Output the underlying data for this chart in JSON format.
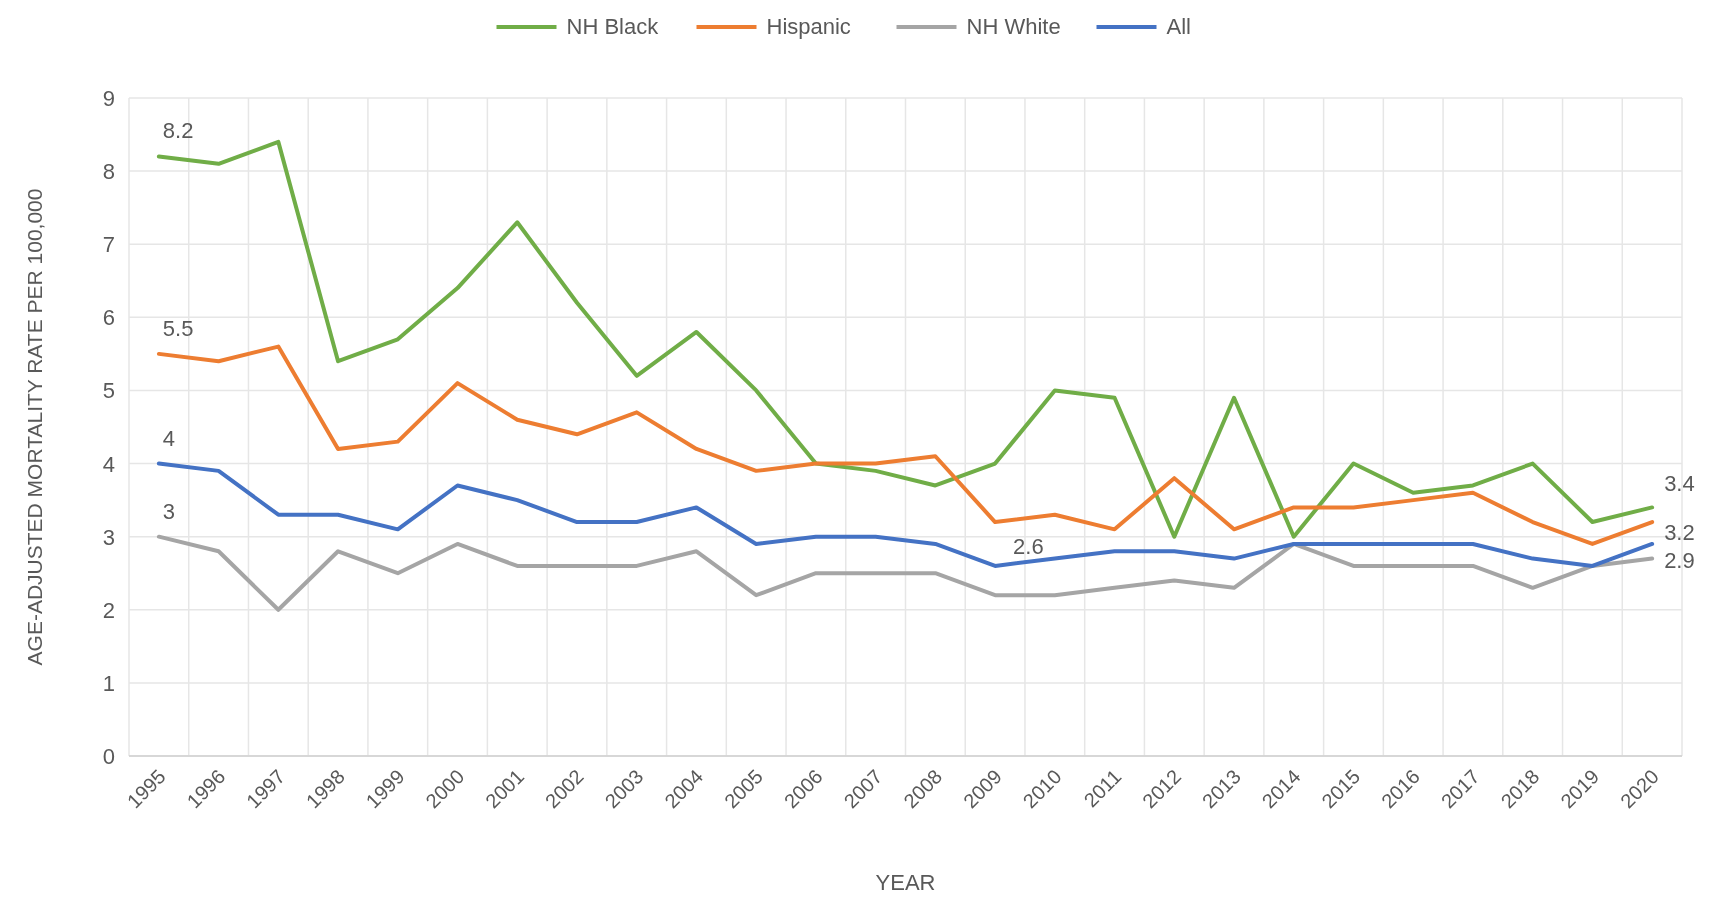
{
  "chart_data": {
    "type": "line",
    "xlabel": "YEAR",
    "ylabel": "AGE-ADJUSTED MORTALITY RATE PER 100,000",
    "categories": [
      "1995",
      "1996",
      "1997",
      "1998",
      "1999",
      "2000",
      "2001",
      "2002",
      "2003",
      "2004",
      "2005",
      "2006",
      "2007",
      "2008",
      "2009",
      "2010",
      "2011",
      "2012",
      "2013",
      "2014",
      "2015",
      "2016",
      "2017",
      "2018",
      "2019",
      "2020"
    ],
    "series": [
      {
        "name": "NH Black",
        "color": "#70ad47",
        "values": [
          8.2,
          8.1,
          8.4,
          5.4,
          5.7,
          6.4,
          7.3,
          6.2,
          5.2,
          5.8,
          5.0,
          4.0,
          3.9,
          3.7,
          4.0,
          5.0,
          4.9,
          3.0,
          4.9,
          3.0,
          4.0,
          3.6,
          3.7,
          4.0,
          3.2,
          3.4
        ],
        "value_labels": [
          "8.2",
          null,
          null,
          null,
          null,
          null,
          null,
          null,
          null,
          null,
          null,
          null,
          null,
          null,
          null,
          null,
          null,
          null,
          null,
          null,
          null,
          null,
          null,
          null,
          null,
          "3.4"
        ]
      },
      {
        "name": "Hispanic",
        "color": "#ed7d31",
        "values": [
          5.5,
          5.4,
          5.6,
          4.2,
          4.3,
          5.1,
          4.6,
          4.4,
          4.7,
          4.2,
          3.9,
          4.0,
          4.0,
          4.1,
          3.2,
          3.3,
          3.1,
          3.8,
          3.1,
          3.4,
          3.4,
          3.5,
          3.6,
          3.2,
          2.9,
          3.2
        ],
        "value_labels": [
          "5.5",
          null,
          null,
          null,
          null,
          null,
          null,
          null,
          null,
          null,
          null,
          null,
          null,
          null,
          null,
          null,
          null,
          null,
          null,
          null,
          null,
          null,
          null,
          null,
          null,
          "3.2"
        ]
      },
      {
        "name": "NH White",
        "color": "#a5a5a5",
        "values": [
          3.0,
          2.8,
          2.0,
          2.8,
          2.5,
          2.9,
          2.6,
          2.6,
          2.6,
          2.8,
          2.2,
          2.5,
          2.5,
          2.5,
          2.2,
          2.2,
          2.3,
          2.4,
          2.3,
          2.9,
          2.6,
          2.6,
          2.6,
          2.3,
          2.6,
          2.7
        ],
        "value_labels": [
          "3",
          null,
          null,
          null,
          null,
          null,
          null,
          null,
          null,
          null,
          null,
          null,
          null,
          null,
          null,
          null,
          null,
          null,
          null,
          null,
          null,
          null,
          null,
          null,
          null,
          null
        ]
      },
      {
        "name": "All",
        "color": "#4472c4",
        "values": [
          4.0,
          3.9,
          3.3,
          3.3,
          3.1,
          3.7,
          3.5,
          3.2,
          3.2,
          3.4,
          2.9,
          3.0,
          3.0,
          2.9,
          2.6,
          2.7,
          2.8,
          2.8,
          2.7,
          2.9,
          2.9,
          2.9,
          2.9,
          2.7,
          2.6,
          2.9
        ],
        "value_labels": [
          "4",
          null,
          null,
          null,
          null,
          null,
          null,
          null,
          null,
          null,
          null,
          null,
          null,
          null,
          "2.6",
          null,
          null,
          null,
          null,
          null,
          null,
          null,
          null,
          null,
          null,
          "2.9"
        ]
      }
    ],
    "ylim": [
      0,
      9
    ],
    "yticks": [
      0,
      1,
      2,
      3,
      4,
      5,
      6,
      7,
      8,
      9
    ],
    "grid": true,
    "legend": "top",
    "line_style": "solid",
    "marker": "none"
  }
}
